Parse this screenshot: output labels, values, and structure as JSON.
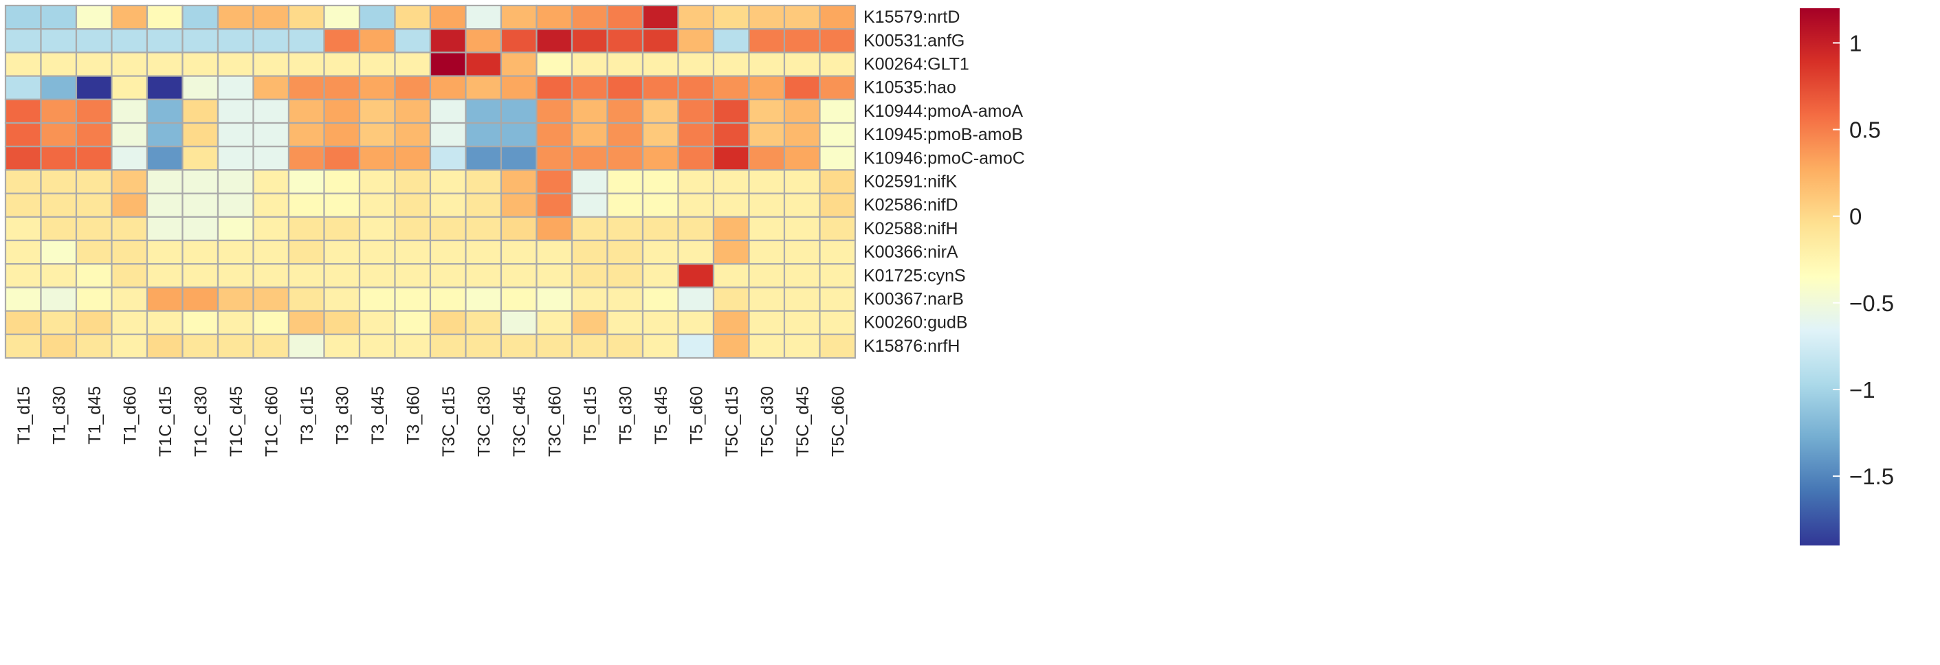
{
  "chart_data": {
    "type": "heatmap",
    "title": "",
    "rows": [
      "K15579:nrtD",
      "K00531:anfG",
      "K00264:GLT1",
      "K10535:hao",
      "K10944:pmoA-amoA",
      "K10945:pmoB-amoB",
      "K10946:pmoC-amoC",
      "K02591:nifK",
      "K02586:nifD",
      "K02588:nifH",
      "K00366:nirA",
      "K01725:cynS",
      "K00367:narB",
      "K00260:gudB",
      "K15876:nrfH"
    ],
    "columns": [
      "T1_d15",
      "T1_d30",
      "T1_d45",
      "T1_d60",
      "T1C_d15",
      "T1C_d30",
      "T1C_d45",
      "T1C_d60",
      "T3_d15",
      "T3_d30",
      "T3_d45",
      "T3_d60",
      "T3C_d15",
      "T3C_d30",
      "T3C_d45",
      "T3C_d60",
      "T5_d15",
      "T5_d30",
      "T5_d45",
      "T5_d60",
      "T5C_d15",
      "T5C_d30",
      "T5C_d45",
      "T5C_d60"
    ],
    "values": [
      [
        -1.0,
        -1.0,
        -0.4,
        0.2,
        -0.3,
        -1.0,
        0.2,
        0.2,
        0.0,
        -0.4,
        -1.0,
        0.0,
        0.3,
        -0.6,
        0.2,
        0.3,
        0.4,
        0.5,
        1.0,
        0.1,
        0.0,
        0.1,
        0.1,
        0.3
      ],
      [
        -0.9,
        -0.9,
        -0.9,
        -0.9,
        -0.9,
        -0.9,
        -0.9,
        -0.9,
        -0.9,
        0.5,
        0.3,
        -0.9,
        1.0,
        0.3,
        0.7,
        1.0,
        0.8,
        0.7,
        0.8,
        0.2,
        -0.9,
        0.5,
        0.5,
        0.5
      ],
      [
        -0.2,
        -0.2,
        -0.2,
        -0.2,
        -0.2,
        -0.2,
        -0.2,
        -0.2,
        -0.2,
        -0.2,
        -0.2,
        -0.2,
        1.2,
        0.9,
        0.2,
        -0.3,
        -0.2,
        -0.2,
        -0.2,
        -0.2,
        -0.2,
        -0.2,
        -0.2,
        -0.2
      ],
      [
        -0.9,
        -1.2,
        -1.9,
        -0.2,
        -1.9,
        -0.5,
        -0.6,
        0.2,
        0.4,
        0.4,
        0.3,
        0.4,
        0.3,
        0.2,
        0.3,
        0.6,
        0.5,
        0.6,
        0.5,
        0.5,
        0.4,
        0.3,
        0.6,
        0.4
      ],
      [
        0.6,
        0.4,
        0.5,
        -0.5,
        -1.2,
        0.0,
        -0.6,
        -0.6,
        0.2,
        0.3,
        0.1,
        0.2,
        -0.6,
        -1.2,
        -1.2,
        0.4,
        0.2,
        0.4,
        0.1,
        0.5,
        0.7,
        0.1,
        0.2,
        -0.4
      ],
      [
        0.6,
        0.4,
        0.5,
        -0.5,
        -1.2,
        0.0,
        -0.6,
        -0.6,
        0.2,
        0.3,
        0.1,
        0.2,
        -0.6,
        -1.2,
        -1.2,
        0.4,
        0.2,
        0.4,
        0.1,
        0.5,
        0.7,
        0.1,
        0.2,
        -0.4
      ],
      [
        0.7,
        0.6,
        0.6,
        -0.6,
        -1.4,
        -0.1,
        -0.6,
        -0.6,
        0.4,
        0.5,
        0.3,
        0.3,
        -0.8,
        -1.4,
        -1.4,
        0.4,
        0.4,
        0.4,
        0.3,
        0.5,
        0.9,
        0.4,
        0.3,
        -0.4
      ],
      [
        -0.1,
        -0.1,
        -0.1,
        0.1,
        -0.5,
        -0.5,
        -0.5,
        -0.2,
        -0.4,
        -0.3,
        -0.2,
        -0.1,
        -0.2,
        -0.1,
        0.2,
        0.5,
        -0.6,
        -0.3,
        -0.3,
        -0.2,
        -0.2,
        -0.2,
        -0.2,
        0.0
      ],
      [
        -0.1,
        -0.1,
        -0.1,
        0.2,
        -0.5,
        -0.5,
        -0.5,
        -0.2,
        -0.3,
        -0.3,
        -0.2,
        -0.1,
        -0.2,
        -0.1,
        0.2,
        0.5,
        -0.6,
        -0.3,
        -0.3,
        -0.2,
        -0.2,
        -0.2,
        -0.2,
        0.0
      ],
      [
        -0.2,
        -0.1,
        -0.1,
        -0.1,
        -0.5,
        -0.5,
        -0.4,
        -0.2,
        -0.1,
        -0.1,
        -0.2,
        -0.1,
        -0.1,
        -0.1,
        0.0,
        0.3,
        -0.1,
        -0.1,
        -0.1,
        -0.1,
        0.2,
        -0.2,
        -0.2,
        -0.1
      ],
      [
        -0.2,
        -0.4,
        -0.1,
        -0.1,
        -0.2,
        -0.2,
        -0.2,
        -0.2,
        -0.1,
        -0.2,
        -0.2,
        -0.2,
        -0.2,
        -0.2,
        -0.2,
        -0.2,
        -0.1,
        -0.1,
        -0.2,
        -0.2,
        0.2,
        -0.2,
        -0.2,
        -0.2
      ],
      [
        -0.2,
        -0.2,
        -0.3,
        -0.1,
        -0.2,
        -0.2,
        -0.2,
        -0.2,
        -0.2,
        -0.2,
        -0.2,
        -0.2,
        -0.2,
        -0.2,
        -0.2,
        -0.2,
        -0.1,
        -0.1,
        -0.2,
        0.9,
        -0.2,
        -0.2,
        -0.2,
        -0.2
      ],
      [
        -0.4,
        -0.5,
        -0.3,
        -0.2,
        0.3,
        0.3,
        0.1,
        0.1,
        -0.1,
        -0.2,
        -0.3,
        -0.3,
        -0.3,
        -0.4,
        -0.3,
        -0.4,
        -0.2,
        -0.2,
        -0.3,
        -0.6,
        -0.1,
        -0.2,
        -0.2,
        -0.2
      ],
      [
        0.0,
        -0.1,
        0.0,
        -0.2,
        -0.2,
        -0.3,
        -0.2,
        -0.3,
        0.1,
        0.0,
        -0.2,
        -0.3,
        0.0,
        -0.1,
        -0.5,
        -0.2,
        0.1,
        -0.2,
        -0.2,
        -0.2,
        0.2,
        -0.2,
        -0.2,
        -0.2
      ],
      [
        -0.1,
        0.0,
        -0.1,
        -0.2,
        0.0,
        -0.1,
        -0.1,
        -0.1,
        -0.5,
        -0.2,
        -0.2,
        -0.2,
        -0.1,
        -0.1,
        -0.1,
        -0.1,
        -0.1,
        -0.1,
        -0.2,
        -0.7,
        0.2,
        -0.2,
        -0.2,
        -0.1
      ]
    ],
    "colorbar": {
      "ticks": [
        "1",
        "0.5",
        "0",
        "−0.5",
        "−1",
        "−1.5"
      ],
      "tick_values": [
        1,
        0.5,
        0,
        -0.5,
        -1,
        -1.5
      ],
      "range": [
        -1.9,
        1.2
      ],
      "colors": [
        "#313695",
        "#4575b4",
        "#74add1",
        "#abd9e9",
        "#e0f3f8",
        "#ffffbf",
        "#fee090",
        "#fdae61",
        "#f46d43",
        "#d73027",
        "#a50026"
      ]
    },
    "grid_color": "#a9a9a9"
  }
}
